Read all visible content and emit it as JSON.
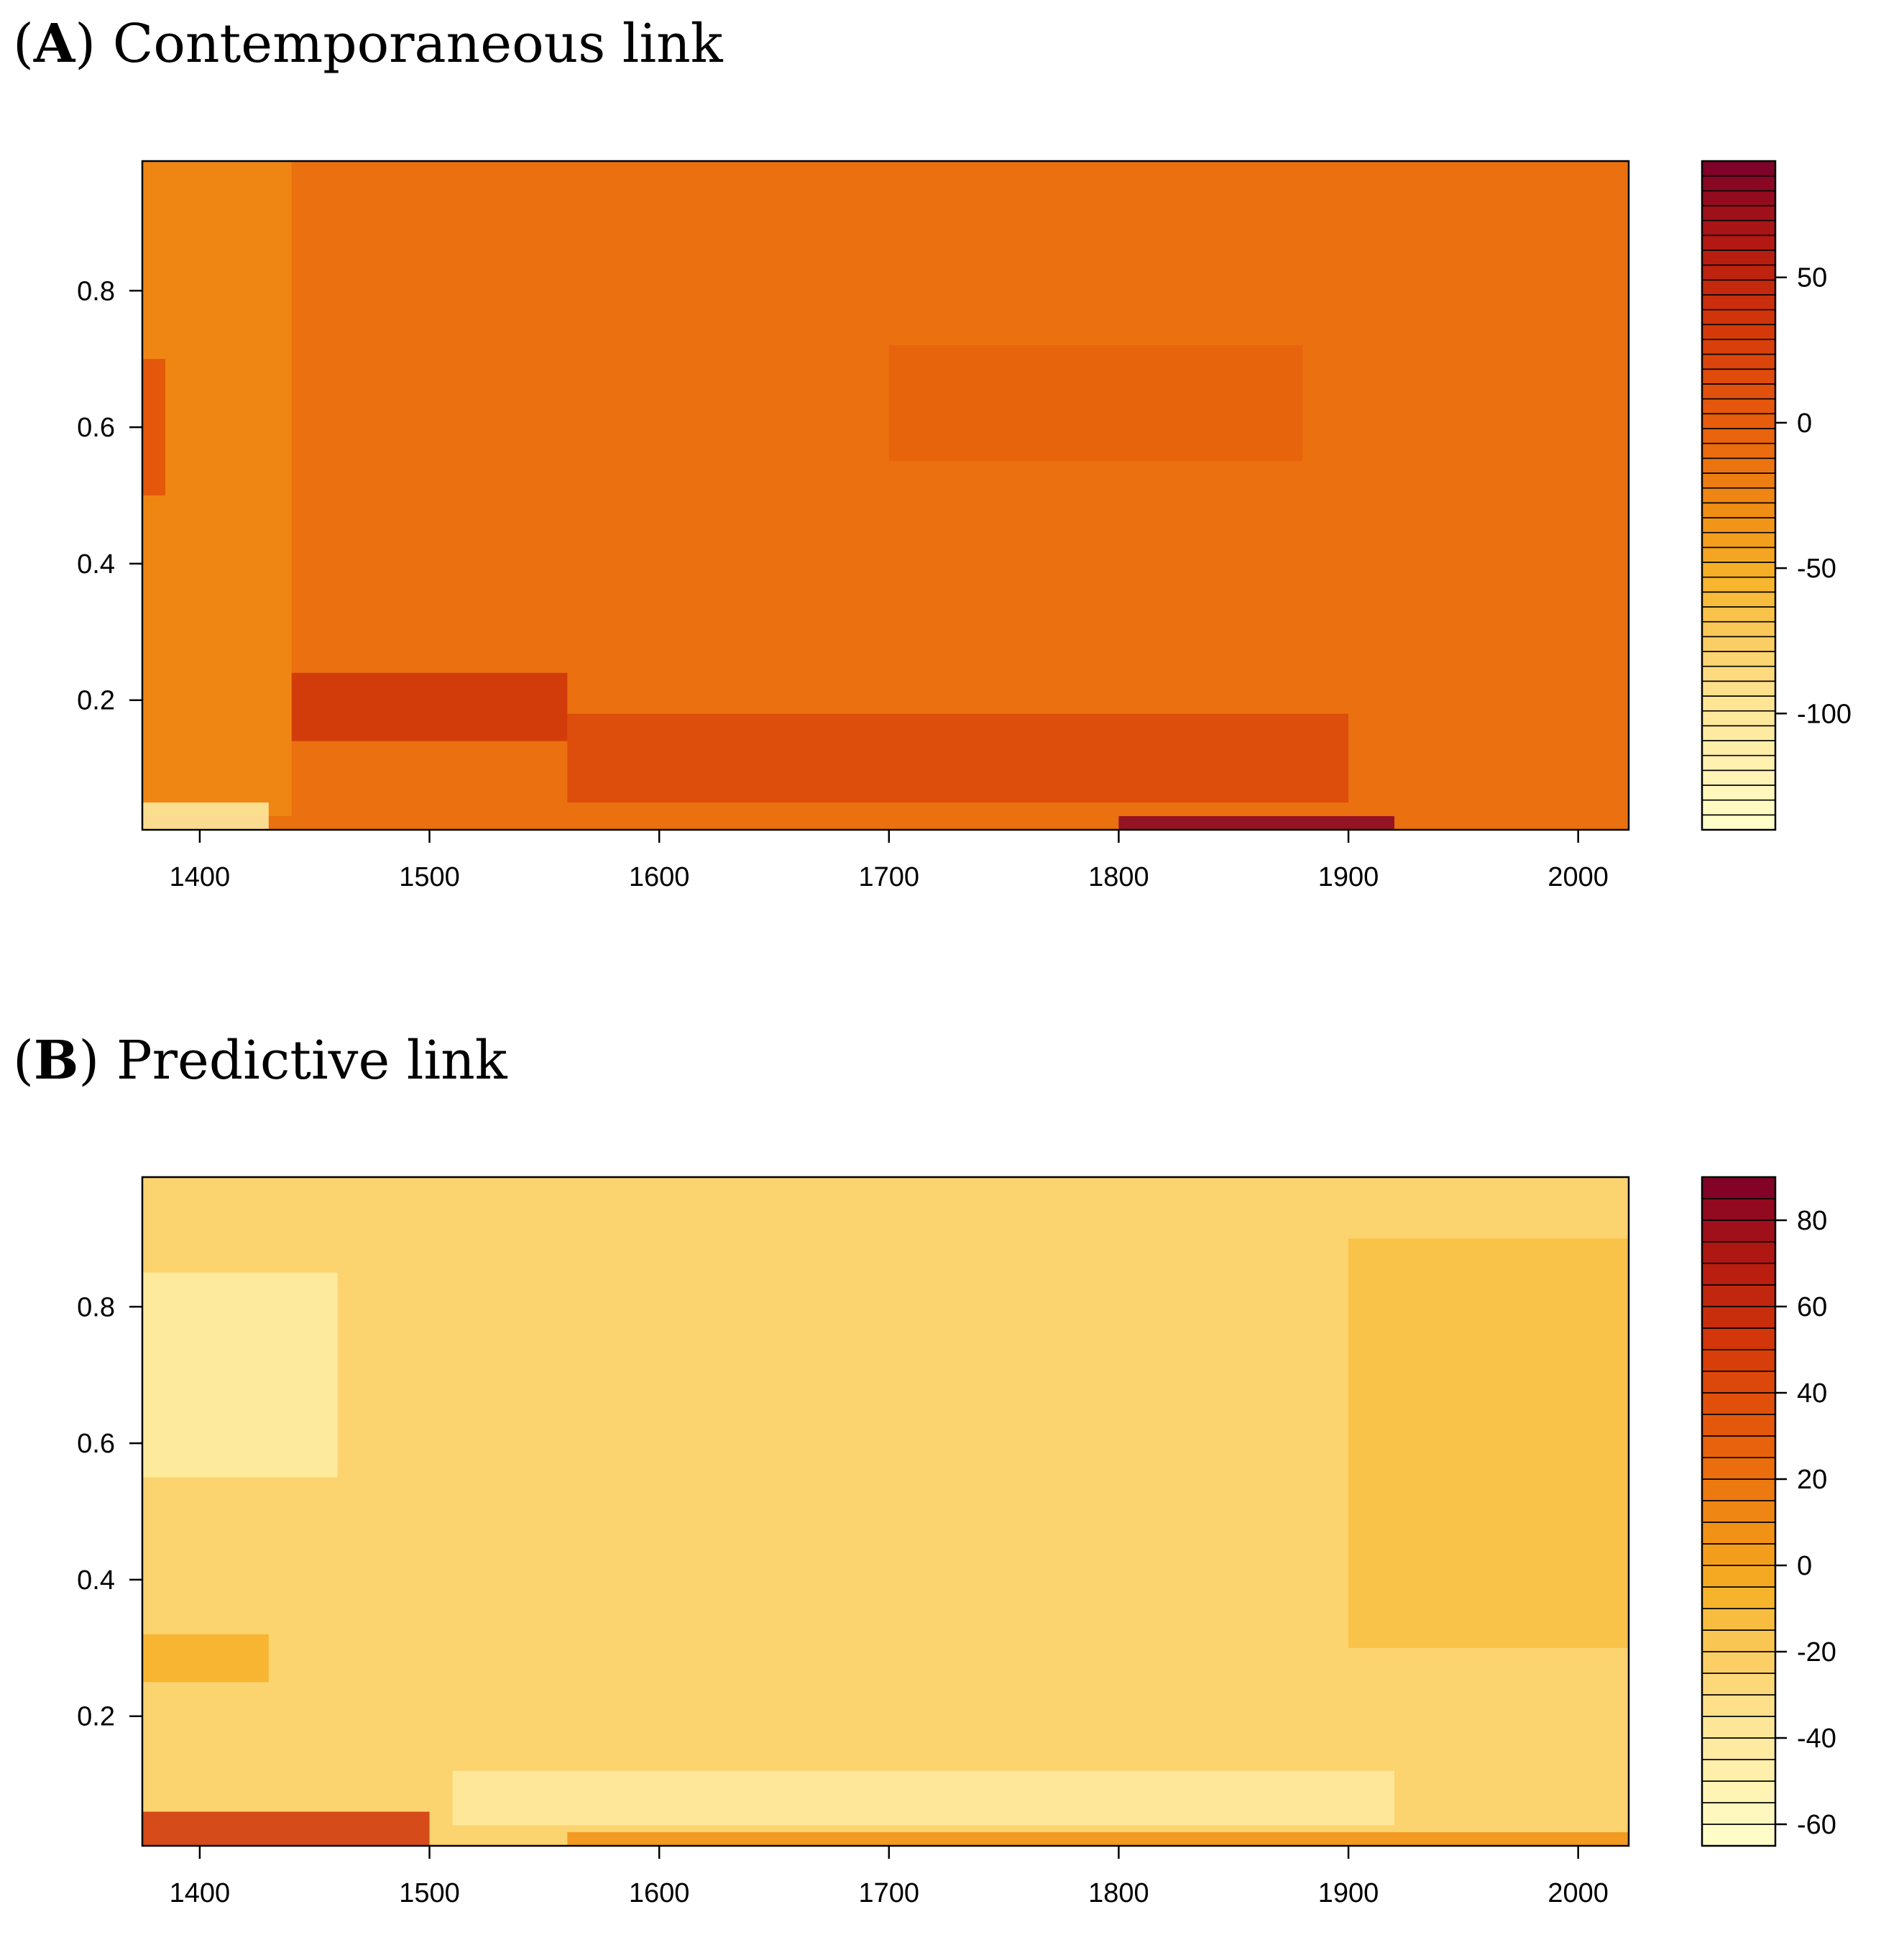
{
  "chart_data": [
    {
      "type": "heatmap",
      "panel_letter": "A",
      "panel_name": "Contemporaneous link",
      "x_range": [
        1375,
        2022
      ],
      "y_range": [
        0.01,
        0.99
      ],
      "x_ticks": [
        1400,
        1500,
        1600,
        1700,
        1800,
        1900,
        2000
      ],
      "y_ticks": [
        0.2,
        0.4,
        0.6,
        0.8
      ],
      "x_tick_labels": [
        "1400",
        "1500",
        "1600",
        "1700",
        "1800",
        "1900",
        "2000"
      ],
      "y_tick_labels": [
        "0.2",
        "0.4",
        "0.6",
        "0.8"
      ],
      "colorbar_range": [
        -140,
        90
      ],
      "colorbar_ticks": [
        50,
        0,
        -50,
        -100
      ],
      "colorbar_tick_labels": [
        "50",
        "0",
        "-50",
        "-100"
      ],
      "colorbar_levels": 45,
      "base_value": -12,
      "features": [
        {
          "x": [
            1375,
            1440
          ],
          "y": [
            0.03,
            0.99
          ],
          "value": -28,
          "note": "lighter early band"
        },
        {
          "x": [
            1375,
            1385
          ],
          "y": [
            0.5,
            0.7
          ],
          "value": 12,
          "note": "darker left edge"
        },
        {
          "x": [
            1440,
            1560
          ],
          "y": [
            0.14,
            0.24
          ],
          "value": 38,
          "note": "dark band near 0.2"
        },
        {
          "x": [
            1560,
            1900
          ],
          "y": [
            0.05,
            0.18
          ],
          "value": 20,
          "note": "darker low band"
        },
        {
          "x": [
            1700,
            1880
          ],
          "y": [
            0.55,
            0.72
          ],
          "value": -3,
          "note": "slightly darker mid patch"
        },
        {
          "x": [
            1800,
            1920
          ],
          "y": [
            0.01,
            0.03
          ],
          "value": 85,
          "note": "darkest strip at bottom"
        },
        {
          "x": [
            1375,
            1430
          ],
          "y": [
            0.01,
            0.05
          ],
          "value": -110,
          "note": "light bottom-left corner"
        }
      ]
    },
    {
      "type": "heatmap",
      "panel_letter": "B",
      "panel_name": "Predictive link",
      "x_range": [
        1375,
        2022
      ],
      "y_range": [
        0.01,
        0.99
      ],
      "x_ticks": [
        1400,
        1500,
        1600,
        1700,
        1800,
        1900,
        2000
      ],
      "y_ticks": [
        0.2,
        0.4,
        0.6,
        0.8
      ],
      "x_tick_labels": [
        "1400",
        "1500",
        "1600",
        "1700",
        "1800",
        "1900",
        "2000"
      ],
      "y_tick_labels": [
        "0.2",
        "0.4",
        "0.6",
        "0.8"
      ],
      "colorbar_range": [
        -65,
        90
      ],
      "colorbar_ticks": [
        80,
        60,
        40,
        20,
        0,
        -20,
        -40,
        -60
      ],
      "colorbar_tick_labels": [
        "80",
        "60",
        "40",
        "20",
        "0",
        "-20",
        "-40",
        "-60"
      ],
      "colorbar_levels": 31,
      "base_value": -25,
      "features": [
        {
          "x": [
            1375,
            1460
          ],
          "y": [
            0.55,
            0.85
          ],
          "value": -45,
          "note": "pale upper-left patch"
        },
        {
          "x": [
            1900,
            2022
          ],
          "y": [
            0.3,
            0.9
          ],
          "value": -13,
          "note": "more saturated right region"
        },
        {
          "x": [
            1375,
            1430
          ],
          "y": [
            0.25,
            0.32
          ],
          "value": -5,
          "note": "orange bump near 0.3"
        },
        {
          "x": [
            1375,
            1500
          ],
          "y": [
            0.01,
            0.06
          ],
          "value": 55,
          "note": "dark red bottom-left"
        },
        {
          "x": [
            1510,
            1920
          ],
          "y": [
            0.04,
            0.12
          ],
          "value": -42,
          "note": "pale lower band"
        },
        {
          "x": [
            1560,
            2022
          ],
          "y": [
            0.01,
            0.03
          ],
          "value": 8,
          "note": "orange bottom strip"
        }
      ]
    }
  ]
}
